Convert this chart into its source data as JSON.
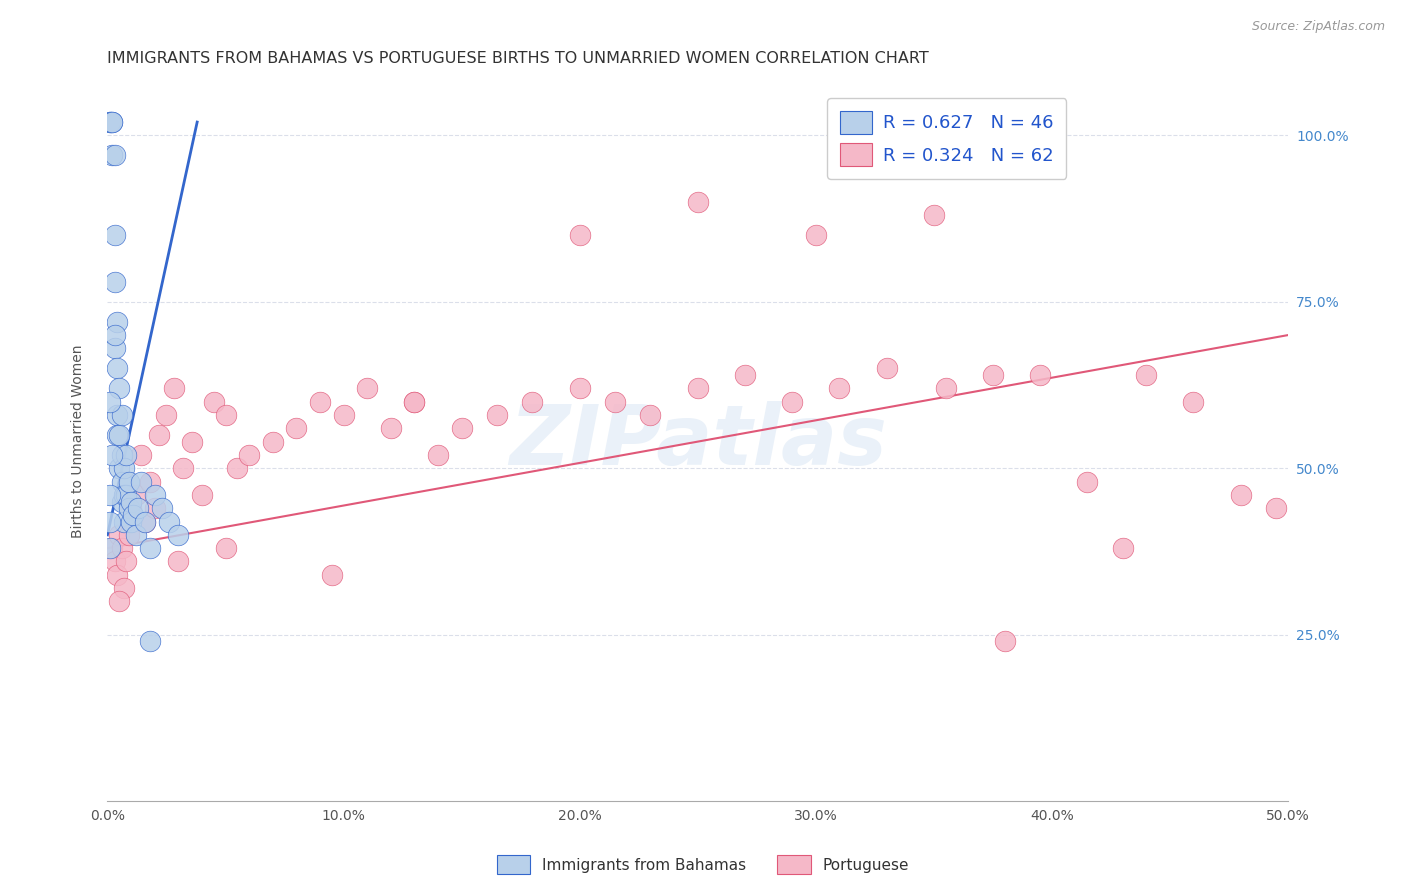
{
  "title": "IMMIGRANTS FROM BAHAMAS VS PORTUGUESE BIRTHS TO UNMARRIED WOMEN CORRELATION CHART",
  "source": "Source: ZipAtlas.com",
  "ylabel": "Births to Unmarried Women",
  "legend_label1": "Immigrants from Bahamas",
  "legend_label2": "Portuguese",
  "R1": 0.627,
  "N1": 46,
  "R2": 0.324,
  "N2": 62,
  "color1": "#b8d0ea",
  "color2": "#f5b8c8",
  "line_color1": "#3366cc",
  "line_color2": "#e05878",
  "xmin": 0.0,
  "xmax": 0.5,
  "ymin": 0.0,
  "ymax": 1.08,
  "xticks": [
    0.0,
    0.1,
    0.2,
    0.3,
    0.4,
    0.5
  ],
  "yticks": [
    0.25,
    0.5,
    0.75,
    1.0
  ],
  "ytick_labels": [
    "25.0%",
    "50.0%",
    "75.0%",
    "100.0%"
  ],
  "xtick_labels": [
    "0.0%",
    "10.0%",
    "20.0%",
    "30.0%",
    "40.0%",
    "50.0%"
  ],
  "blue_scatter_x": [
    0.001,
    0.001,
    0.002,
    0.002,
    0.002,
    0.003,
    0.003,
    0.003,
    0.003,
    0.004,
    0.004,
    0.004,
    0.004,
    0.005,
    0.005,
    0.005,
    0.006,
    0.006,
    0.006,
    0.006,
    0.007,
    0.007,
    0.007,
    0.008,
    0.008,
    0.009,
    0.009,
    0.01,
    0.01,
    0.011,
    0.012,
    0.013,
    0.014,
    0.016,
    0.018,
    0.02,
    0.023,
    0.026,
    0.03,
    0.001,
    0.002,
    0.003,
    0.018,
    0.001,
    0.001,
    0.001
  ],
  "blue_scatter_y": [
    1.02,
    1.02,
    1.02,
    1.02,
    0.97,
    0.97,
    0.85,
    0.78,
    0.68,
    0.72,
    0.65,
    0.58,
    0.55,
    0.62,
    0.55,
    0.5,
    0.58,
    0.52,
    0.48,
    0.45,
    0.5,
    0.46,
    0.42,
    0.52,
    0.46,
    0.48,
    0.44,
    0.45,
    0.42,
    0.43,
    0.4,
    0.44,
    0.48,
    0.42,
    0.38,
    0.46,
    0.44,
    0.42,
    0.4,
    0.6,
    0.52,
    0.7,
    0.24,
    0.46,
    0.42,
    0.38
  ],
  "pink_scatter_x": [
    0.002,
    0.003,
    0.004,
    0.005,
    0.006,
    0.007,
    0.008,
    0.009,
    0.01,
    0.012,
    0.014,
    0.016,
    0.018,
    0.02,
    0.022,
    0.025,
    0.028,
    0.032,
    0.036,
    0.04,
    0.045,
    0.05,
    0.055,
    0.06,
    0.07,
    0.08,
    0.09,
    0.1,
    0.11,
    0.12,
    0.13,
    0.14,
    0.15,
    0.165,
    0.18,
    0.2,
    0.215,
    0.23,
    0.25,
    0.27,
    0.29,
    0.31,
    0.33,
    0.355,
    0.375,
    0.395,
    0.415,
    0.44,
    0.46,
    0.48,
    0.495,
    0.005,
    0.03,
    0.05,
    0.095,
    0.13,
    0.2,
    0.25,
    0.3,
    0.35,
    0.38,
    0.43
  ],
  "pink_scatter_y": [
    0.38,
    0.36,
    0.34,
    0.4,
    0.38,
    0.32,
    0.36,
    0.4,
    0.44,
    0.46,
    0.52,
    0.42,
    0.48,
    0.44,
    0.55,
    0.58,
    0.62,
    0.5,
    0.54,
    0.46,
    0.6,
    0.58,
    0.5,
    0.52,
    0.54,
    0.56,
    0.6,
    0.58,
    0.62,
    0.56,
    0.6,
    0.52,
    0.56,
    0.58,
    0.6,
    0.62,
    0.6,
    0.58,
    0.62,
    0.64,
    0.6,
    0.62,
    0.65,
    0.62,
    0.64,
    0.64,
    0.48,
    0.64,
    0.6,
    0.46,
    0.44,
    0.3,
    0.36,
    0.38,
    0.34,
    0.6,
    0.85,
    0.9,
    0.85,
    0.88,
    0.24,
    0.38
  ],
  "blue_line_x0": 0.0,
  "blue_line_x1": 0.038,
  "blue_line_y0": 0.4,
  "blue_line_y1": 1.02,
  "pink_line_x0": 0.0,
  "pink_line_x1": 0.5,
  "pink_line_y0": 0.38,
  "pink_line_y1": 0.7,
  "watermark": "ZIPatlas",
  "background_color": "#ffffff",
  "grid_color": "#d8dce8",
  "title_fontsize": 11.5,
  "axis_label_fontsize": 10,
  "tick_fontsize": 10,
  "right_tick_color": "#4488cc",
  "legend_R_color": "#2255cc"
}
